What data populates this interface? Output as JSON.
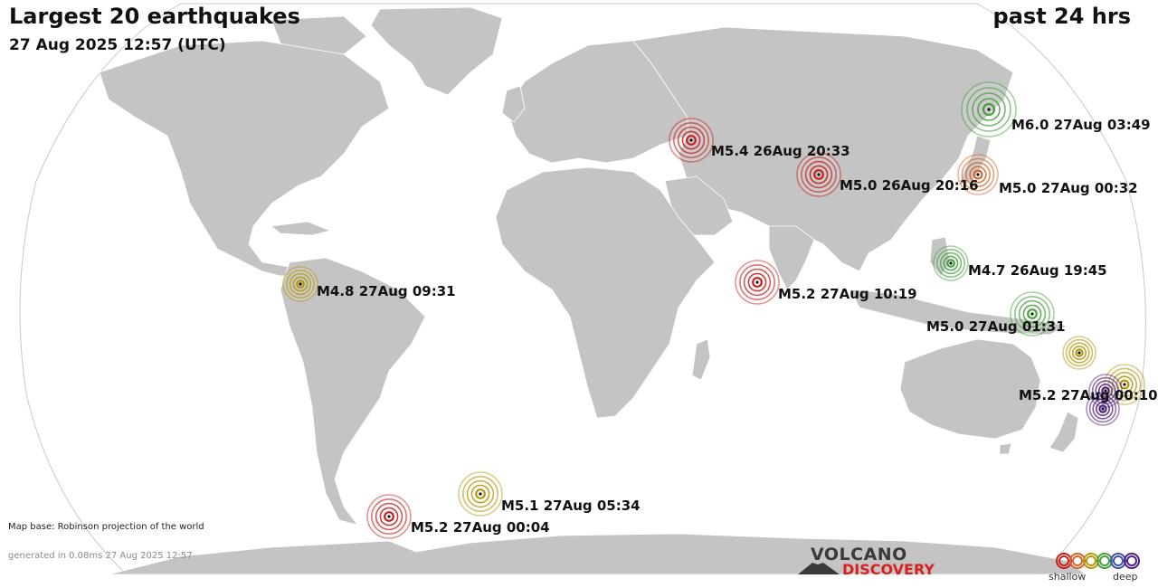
{
  "header": {
    "title": "Largest 20 earthquakes",
    "datetime": "27 Aug 2025 12:57 (UTC)",
    "period": "past 24 hrs"
  },
  "colors": {
    "land": "#c4c4c4",
    "ocean": "#ffffff",
    "border": "#ffffff",
    "depth_scale": [
      "#c81e1e",
      "#d2642d",
      "#b4960a",
      "#46a03c",
      "#3c50b4",
      "#501e82"
    ]
  },
  "earthquakes": [
    {
      "label": "M6.0 27Aug 03:49",
      "depth": "intermediate-green"
    },
    {
      "label": "M5.4 26Aug 20:33",
      "depth": "shallow-red"
    },
    {
      "label": "M5.0 26Aug 20:16",
      "depth": "shallow-red"
    },
    {
      "label": "M5.0 27Aug 00:32",
      "depth": "shallow-orange"
    },
    {
      "label": "M4.7 26Aug 19:45",
      "depth": "intermediate-green"
    },
    {
      "label": "M5.2 27Aug 10:19",
      "depth": "shallow-red"
    },
    {
      "label": "M5.0 27Aug 01:31",
      "depth": "intermediate-green"
    },
    {
      "label": "M4.8 27Aug 09:31",
      "depth": "mid-olive"
    },
    {
      "label": "M5.2 27Aug 00:10",
      "depth": "mid-olive"
    },
    {
      "label": "M5.1 27Aug 05:34",
      "depth": "mid-olive"
    },
    {
      "label": "M5.2 27Aug 00:04",
      "depth": "shallow-red"
    },
    {
      "label": "",
      "depth": "mid-olive"
    },
    {
      "label": "",
      "depth": "deep-purple"
    },
    {
      "label": "",
      "depth": "deep-purple"
    }
  ],
  "footer": {
    "map_base": "Map base: Robinson projection of the world",
    "generated": "generated in 0.08ms 27 Aug 2025 12:57"
  },
  "logo": {
    "line1": "VOLCANO",
    "line2": "DISCOVERY"
  },
  "legend": {
    "shallow": "shallow",
    "deep": "deep"
  }
}
